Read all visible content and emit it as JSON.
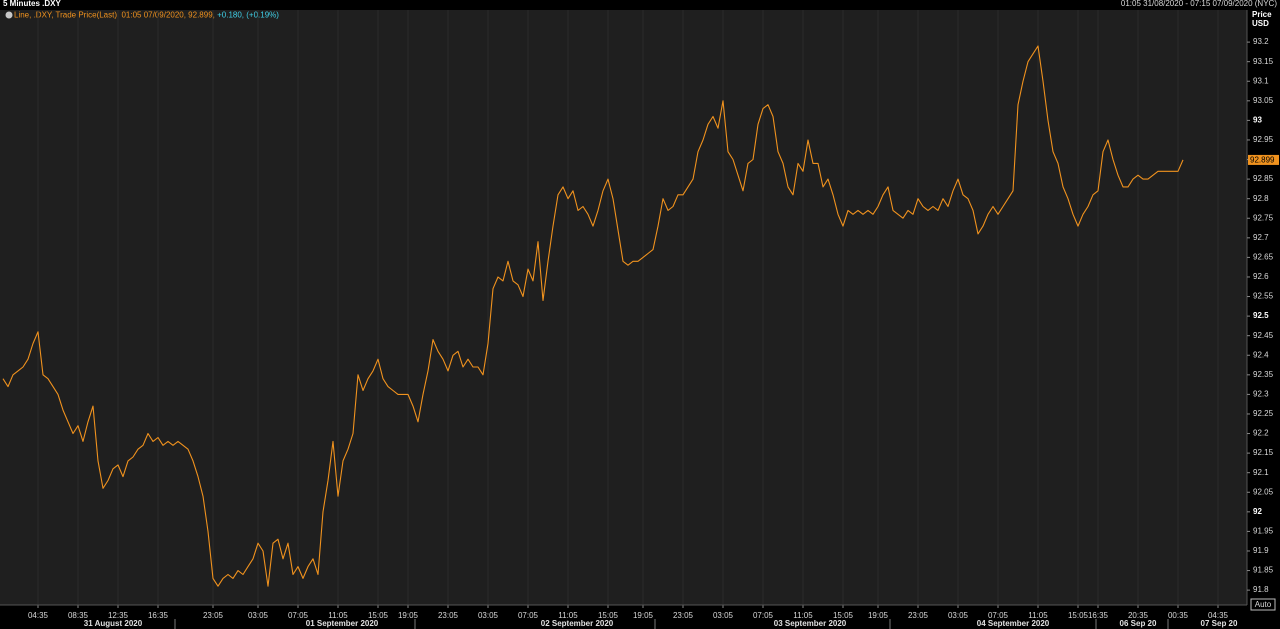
{
  "chart_data": {
    "type": "line",
    "title": "5 Minutes .DXY",
    "range": "01:05 31/08/2020 - 07:15 07/09/2020 (NYC)",
    "legend": "Line, .DXY, Trade Price(Last), 01:05 07/09/2020, 92.899,",
    "change": "+0.180, (+0.19%)",
    "y_label": "Price",
    "y_unit": "USD",
    "scale_button": "Auto",
    "date_labels": [
      "31 August 2020",
      "01 September 2020",
      "02 September 2020",
      "03 September 2020",
      "04 September 2020",
      "06 Sep 20",
      "07 Sep 20"
    ],
    "grid": true,
    "ylim": [
      91.762,
      93.282
    ],
    "yticks": [
      91.8,
      91.85,
      91.9,
      91.95,
      92,
      92.05,
      92.1,
      92.15,
      92.2,
      92.25,
      92.3,
      92.35,
      92.4,
      92.45,
      92.5,
      92.55,
      92.6,
      92.65,
      92.7,
      92.75,
      92.8,
      92.85,
      92.9,
      92.95,
      93,
      93.05,
      93.1,
      93.15,
      93.2
    ],
    "categories": [
      null,
      null,
      null,
      null,
      null,
      null,
      null,
      "04:35",
      null,
      null,
      null,
      null,
      null,
      null,
      null,
      "08:35",
      null,
      null,
      null,
      null,
      null,
      null,
      null,
      "12:35",
      null,
      null,
      null,
      null,
      null,
      null,
      null,
      "16:35",
      null,
      null,
      null,
      null,
      null,
      null,
      null,
      null,
      null,
      null,
      "23:05",
      null,
      null,
      null,
      null,
      null,
      null,
      null,
      null,
      "03:05",
      null,
      null,
      null,
      null,
      null,
      null,
      null,
      "07:05",
      null,
      null,
      null,
      null,
      null,
      null,
      null,
      "11:05",
      null,
      null,
      null,
      null,
      null,
      null,
      null,
      "15:05",
      null,
      null,
      null,
      null,
      null,
      "19:05",
      null,
      null,
      null,
      null,
      null,
      null,
      null,
      "23:05",
      null,
      null,
      null,
      null,
      null,
      null,
      null,
      "03:05",
      null,
      null,
      null,
      null,
      null,
      null,
      null,
      "07:05",
      null,
      null,
      null,
      null,
      null,
      null,
      null,
      "11:05",
      null,
      null,
      null,
      null,
      null,
      null,
      null,
      "15:05",
      null,
      null,
      null,
      null,
      null,
      null,
      "19:05",
      null,
      null,
      null,
      null,
      null,
      null,
      null,
      "23:05",
      null,
      null,
      null,
      null,
      null,
      null,
      null,
      "03:05",
      null,
      null,
      null,
      null,
      null,
      null,
      null,
      "07:05",
      null,
      null,
      null,
      null,
      null,
      null,
      null,
      "11:05",
      null,
      null,
      null,
      null,
      null,
      null,
      null,
      "15:05",
      null,
      null,
      null,
      null,
      null,
      null,
      "19:05",
      null,
      null,
      null,
      null,
      null,
      null,
      null,
      "23:05",
      null,
      null,
      null,
      null,
      null,
      null,
      null,
      "03:05",
      null,
      null,
      null,
      null,
      null,
      null,
      null,
      "07:05",
      null,
      null,
      null,
      null,
      null,
      null,
      null,
      "11:05",
      null,
      null,
      null,
      null,
      null,
      null,
      null,
      "15:05",
      null,
      null,
      null,
      "16:35",
      null,
      null,
      null,
      null,
      null,
      null,
      null,
      "20:35",
      null,
      null,
      null,
      null,
      null,
      null,
      null,
      "00:35",
      null,
      null,
      null,
      null,
      null,
      null,
      null,
      "04:35"
    ],
    "series": [
      {
        "name": ".DXY",
        "color": "#f0921e",
        "values": [
          92.34,
          92.32,
          92.35,
          92.36,
          92.37,
          92.39,
          92.43,
          92.46,
          92.35,
          92.34,
          92.32,
          92.3,
          92.26,
          92.23,
          92.2,
          92.22,
          92.18,
          92.23,
          92.27,
          92.13,
          92.06,
          92.08,
          92.11,
          92.12,
          92.09,
          92.13,
          92.14,
          92.16,
          92.17,
          92.2,
          92.18,
          92.19,
          92.17,
          92.18,
          92.17,
          92.18,
          92.17,
          92.16,
          92.13,
          92.09,
          92.04,
          91.95,
          91.83,
          91.81,
          91.83,
          91.84,
          91.83,
          91.85,
          91.84,
          91.86,
          91.88,
          91.92,
          91.9,
          91.81,
          91.92,
          91.93,
          91.88,
          91.92,
          91.84,
          91.86,
          91.83,
          91.86,
          91.88,
          91.84,
          92.0,
          92.08,
          92.18,
          92.04,
          92.13,
          92.16,
          92.2,
          92.35,
          92.31,
          92.34,
          92.36,
          92.39,
          92.34,
          92.32,
          92.31,
          92.3,
          92.3,
          92.3,
          92.27,
          92.23,
          92.3,
          92.36,
          92.44,
          92.41,
          92.39,
          92.36,
          92.4,
          92.41,
          92.37,
          92.39,
          92.37,
          92.37,
          92.35,
          92.43,
          92.57,
          92.6,
          92.59,
          92.64,
          92.59,
          92.58,
          92.55,
          92.62,
          92.59,
          92.69,
          92.54,
          92.64,
          92.73,
          92.81,
          92.83,
          92.8,
          92.82,
          92.77,
          92.78,
          92.76,
          92.73,
          92.77,
          92.82,
          92.85,
          92.8,
          92.72,
          92.64,
          92.63,
          92.64,
          92.64,
          92.65,
          92.66,
          92.67,
          92.73,
          92.8,
          92.77,
          92.78,
          92.81,
          92.81,
          92.83,
          92.85,
          92.92,
          92.95,
          92.99,
          93.01,
          92.98,
          93.05,
          92.92,
          92.9,
          92.86,
          92.82,
          92.89,
          92.9,
          92.99,
          93.03,
          93.04,
          93.01,
          92.92,
          92.89,
          92.83,
          92.81,
          92.89,
          92.87,
          92.95,
          92.89,
          92.89,
          92.83,
          92.85,
          92.81,
          92.76,
          92.73,
          92.77,
          92.76,
          92.77,
          92.76,
          92.77,
          92.76,
          92.78,
          92.81,
          92.83,
          92.77,
          92.76,
          92.75,
          92.77,
          92.76,
          92.8,
          92.78,
          92.77,
          92.78,
          92.77,
          92.8,
          92.78,
          92.82,
          92.85,
          92.81,
          92.8,
          92.77,
          92.71,
          92.73,
          92.76,
          92.78,
          92.76,
          92.78,
          92.8,
          92.82,
          93.04,
          93.1,
          93.15,
          93.17,
          93.19,
          93.1,
          93.0,
          92.92,
          92.89,
          92.83,
          92.8,
          92.76,
          92.73,
          92.76,
          92.78,
          92.81,
          92.82,
          92.92,
          92.95,
          92.9,
          92.86,
          92.83,
          92.83,
          92.85,
          92.86,
          92.85,
          92.85,
          92.86,
          92.87,
          92.87,
          92.87,
          92.87,
          92.87,
          92.899,
          null,
          null,
          null,
          null,
          null,
          null,
          null
        ]
      }
    ]
  }
}
